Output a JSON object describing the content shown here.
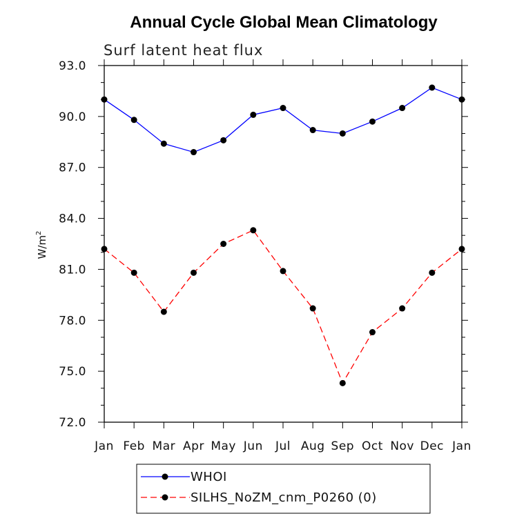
{
  "chart_data": {
    "type": "line",
    "title": "Annual Cycle Global Mean Climatology",
    "subtitle": "Surf latent heat flux",
    "ylabel": "W/m",
    "ylabel_sup": "2",
    "ylim": [
      72.0,
      93.0
    ],
    "yticks": [
      "72.0",
      "75.0",
      "78.0",
      "81.0",
      "84.0",
      "87.0",
      "90.0",
      "93.0"
    ],
    "ytick_values": [
      72,
      75,
      78,
      81,
      84,
      87,
      90,
      93
    ],
    "categories": [
      "Jan",
      "Feb",
      "Mar",
      "Apr",
      "May",
      "Jun",
      "Jul",
      "Aug",
      "Sep",
      "Oct",
      "Nov",
      "Dec",
      "Jan"
    ],
    "series": [
      {
        "name": "WHOI",
        "color": "#0000ff",
        "dash": "solid",
        "values": [
          91.0,
          89.8,
          88.4,
          87.9,
          88.6,
          90.1,
          90.5,
          89.2,
          89.0,
          89.7,
          90.5,
          91.7,
          91.0
        ]
      },
      {
        "name": "SILHS_NoZM_cnm_P0260 (0)",
        "color": "#ff0000",
        "dash": "dashed",
        "values": [
          82.2,
          80.8,
          78.5,
          80.8,
          82.5,
          83.3,
          80.9,
          78.7,
          74.3,
          77.3,
          78.7,
          80.8,
          82.2
        ]
      }
    ],
    "legend_position": "bottom-center",
    "grid": false
  }
}
